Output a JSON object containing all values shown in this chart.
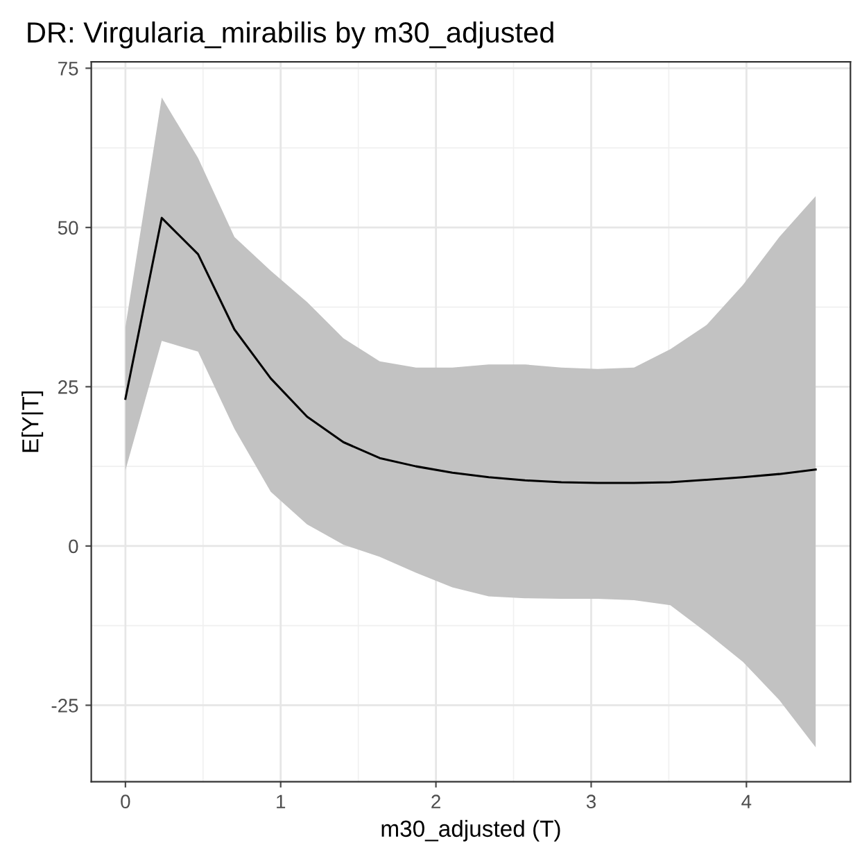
{
  "chart_data": {
    "type": "line",
    "title": "DR: Virgularia_mirabilis by m30_adjusted",
    "xlabel": "m30_adjusted (T)",
    "ylabel": "E[Y|T]",
    "series": [
      {
        "color": "#000000",
        "x": [
          0,
          0.234,
          0.468,
          0.702,
          0.936,
          1.17,
          1.404,
          1.638,
          1.872,
          2.106,
          2.34,
          2.574,
          2.808,
          3.042,
          3.276,
          3.51,
          3.744,
          3.978,
          4.212,
          4.446
        ],
        "values": [
          23.1,
          51.5,
          45.8,
          34,
          26.3,
          20.3,
          16.3,
          13.8,
          12.5,
          11.5,
          10.8,
          10.3,
          10,
          9.9,
          9.9,
          10,
          10.4,
          10.8,
          11.3,
          12
        ],
        "upper": [
          34.4,
          70.4,
          60.9,
          48.5,
          43.2,
          38.3,
          32.6,
          29,
          28,
          28,
          28.5,
          28.5,
          28,
          27.8,
          28,
          30.9,
          34.7,
          41,
          48.5,
          54.9
        ],
        "lower": [
          11.9,
          32.2,
          30.5,
          18.4,
          8.5,
          3.4,
          0.2,
          -1.7,
          -4.2,
          -6.5,
          -7.9,
          -8.2,
          -8.3,
          -8.3,
          -8.5,
          -9.3,
          -13.6,
          -18.2,
          -24.2,
          -31.6
        ]
      }
    ],
    "xlim": [
      -0.22,
      4.67
    ],
    "ylim": [
      -37,
      76
    ],
    "xticks": [
      0,
      1,
      2,
      3,
      4
    ],
    "yticks": [
      -25,
      0,
      25,
      50,
      75
    ],
    "grid": true,
    "line_style": "solid",
    "marker": "none"
  }
}
